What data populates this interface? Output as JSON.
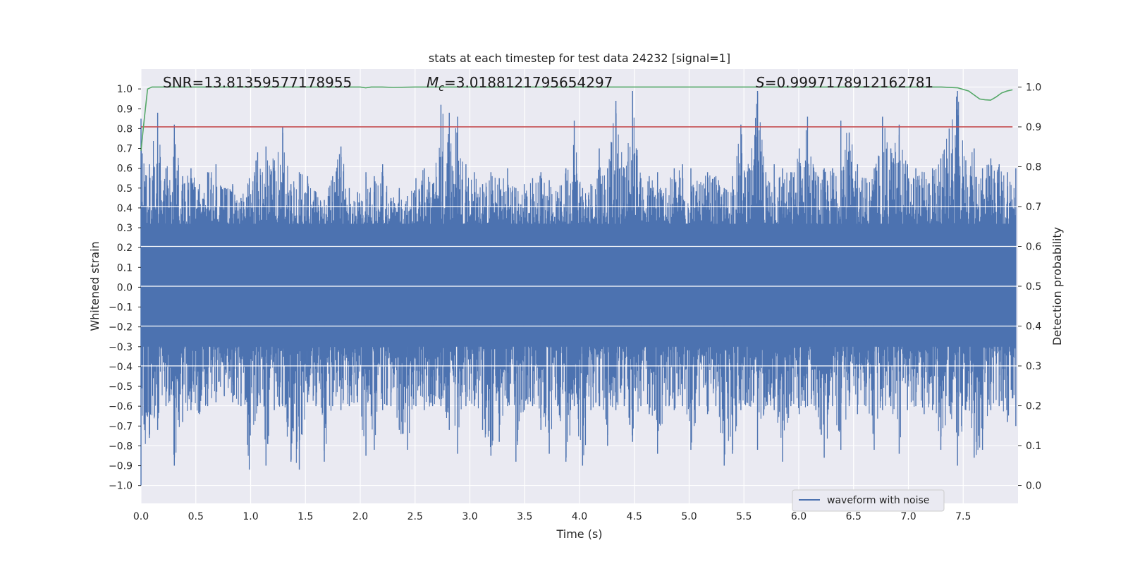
{
  "chart_data": {
    "type": "line",
    "title": "stats at each timestep for test data 24232 [signal=1]",
    "xlabel": "Time (s)",
    "ylabel_left": "Whitened strain",
    "ylabel_right": "Detection probability",
    "xlim": [
      0.0,
      8.0
    ],
    "ylim_left": [
      -1.09,
      1.1
    ],
    "ylim_right": [
      -0.045,
      1.045
    ],
    "x_ticks": [
      "0.0",
      "0.5",
      "1.0",
      "1.5",
      "2.0",
      "2.5",
      "3.0",
      "3.5",
      "4.0",
      "4.5",
      "5.0",
      "5.5",
      "6.0",
      "6.5",
      "7.0",
      "7.5"
    ],
    "y_left_ticks": [
      "−1.0",
      "−0.9",
      "−0.8",
      "−0.7",
      "−0.6",
      "−0.5",
      "−0.4",
      "−0.3",
      "−0.2",
      "−0.1",
      "0.0",
      "0.1",
      "0.2",
      "0.3",
      "0.4",
      "0.5",
      "0.6",
      "0.7",
      "0.8",
      "0.9",
      "1.0"
    ],
    "y_right_ticks": [
      "0.0",
      "0.1",
      "0.2",
      "0.3",
      "0.4",
      "0.5",
      "0.6",
      "0.7",
      "0.8",
      "0.9",
      "1.0"
    ],
    "grid": true,
    "legend_position": "lower-right",
    "annotations": {
      "snr": "SNR=13.81359577178955",
      "mc_symbol": "M",
      "mc_sub": "c",
      "mc_value": "=3.0188121795654297",
      "s_symbol": "S",
      "s_value": "=0.9997178912162781"
    },
    "series": [
      {
        "name": "waveform with noise",
        "axis": "left",
        "color": "#4c72b0",
        "envelope_max": [
          0.85,
          0.62,
          0.88,
          0.6,
          0.82,
          0.56,
          0.6,
          0.52,
          0.58,
          0.62,
          0.5,
          0.52,
          0.45,
          0.55,
          0.68,
          0.71,
          0.64,
          0.81,
          0.52,
          0.58,
          0.56,
          0.48,
          0.44,
          0.56,
          0.71,
          0.5,
          0.48,
          0.58,
          0.56,
          0.62,
          0.45,
          0.5,
          0.46,
          0.55,
          0.6,
          0.52,
          0.92,
          0.88,
          0.86,
          0.62,
          0.58,
          0.52,
          0.58,
          0.55,
          0.6,
          0.5,
          0.52,
          0.55,
          0.58,
          0.54,
          0.48,
          0.6,
          0.84,
          0.5,
          0.52,
          0.7,
          0.6,
          0.94,
          0.6,
          0.99,
          0.55,
          0.56,
          0.58,
          0.5,
          0.6,
          0.62,
          0.6,
          0.52,
          0.58,
          0.56,
          0.5,
          0.56,
          0.82,
          0.6,
          0.99,
          0.58,
          0.62,
          0.6,
          0.58,
          0.7,
          0.86,
          0.58,
          0.6,
          0.6,
          0.84,
          0.78,
          0.62,
          0.55,
          0.6,
          0.86,
          0.7,
          0.82,
          0.62,
          0.6,
          0.58,
          0.6,
          0.65,
          0.8,
          0.99,
          0.64,
          0.7,
          0.6,
          0.65,
          0.62,
          0.58,
          0.6
        ],
        "envelope_min": [
          -1.0,
          -0.76,
          -0.72,
          -0.6,
          -0.9,
          -0.68,
          -0.62,
          -0.64,
          -0.6,
          -0.58,
          -0.55,
          -0.58,
          -0.6,
          -0.92,
          -0.6,
          -0.9,
          -0.62,
          -0.6,
          -0.88,
          -0.92,
          -0.58,
          -0.6,
          -0.88,
          -0.6,
          -0.62,
          -0.6,
          -0.58,
          -0.85,
          -0.82,
          -0.62,
          -0.6,
          -0.72,
          -0.82,
          -0.6,
          -0.62,
          -0.6,
          -0.6,
          -0.72,
          -0.84,
          -0.6,
          -0.6,
          -0.72,
          -0.85,
          -0.78,
          -0.6,
          -0.88,
          -0.62,
          -0.6,
          -0.72,
          -0.84,
          -0.6,
          -0.88,
          -0.6,
          -0.9,
          -0.62,
          -0.6,
          -0.8,
          -0.62,
          -0.6,
          -0.78,
          -0.6,
          -0.64,
          -0.84,
          -0.6,
          -0.62,
          -0.6,
          -0.82,
          -0.6,
          -0.64,
          -0.6,
          -0.9,
          -0.84,
          -0.62,
          -0.6,
          -0.82,
          -0.6,
          -0.62,
          -0.88,
          -0.6,
          -0.64,
          -0.6,
          -0.62,
          -0.86,
          -0.6,
          -0.82,
          -0.6,
          -0.64,
          -0.6,
          -0.82,
          -0.62,
          -0.6,
          -0.84,
          -0.62,
          -0.6,
          -0.64,
          -0.62,
          -0.82,
          -0.6,
          -0.9,
          -0.62,
          -0.86,
          -0.82,
          -0.62,
          -0.6,
          -0.68,
          -0.7
        ]
      },
      {
        "name": "",
        "axis": "right",
        "color": "#55a868",
        "x": [
          0.0,
          0.03,
          0.06,
          0.1,
          0.15,
          0.3,
          0.5,
          1.0,
          1.5,
          2.0,
          2.05,
          2.1,
          2.2,
          2.3,
          2.5,
          3.0,
          3.5,
          4.0,
          4.5,
          5.0,
          5.5,
          6.0,
          6.5,
          7.0,
          7.3,
          7.45,
          7.55,
          7.6,
          7.65,
          7.7,
          7.75,
          7.8,
          7.85,
          7.9,
          7.95
        ],
        "y": [
          0.84,
          0.92,
          0.995,
          1.0,
          1.0,
          1.0,
          1.0,
          1.0,
          1.0,
          1.0,
          0.998,
          1.0,
          1.0,
          0.999,
          1.0,
          1.0,
          1.0,
          1.0,
          1.0,
          1.0,
          1.0,
          1.0,
          1.0,
          1.0,
          1.0,
          0.998,
          0.99,
          0.98,
          0.97,
          0.968,
          0.967,
          0.975,
          0.985,
          0.99,
          0.993
        ]
      },
      {
        "name": "",
        "axis": "right",
        "color": "#c44e52",
        "x": [
          0.0,
          7.95
        ],
        "y": [
          0.9,
          0.9
        ]
      }
    ]
  }
}
